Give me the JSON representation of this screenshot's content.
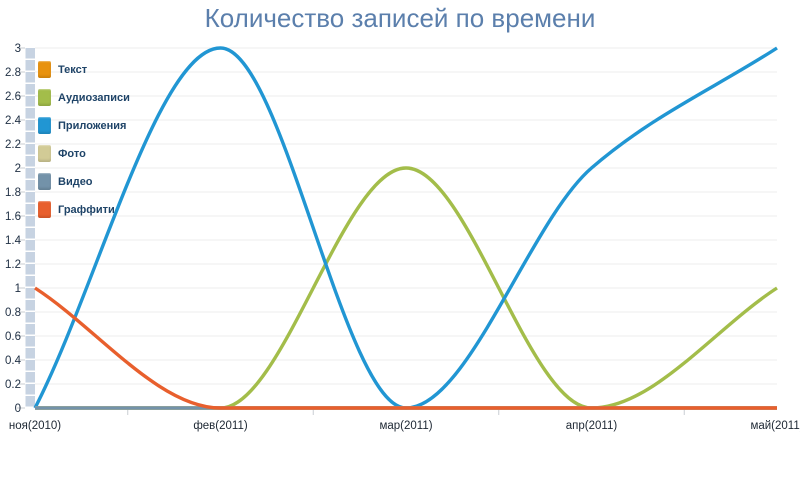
{
  "title": "Количество записей по времени",
  "colors": {
    "title": "#5b7fac",
    "axis_label": "#223246",
    "x_label": "#1d2733",
    "legend_text": "#1f4468",
    "gridline": "#ececec",
    "tick": "#c9cdd2",
    "axis_stripe": "#c7d3e2"
  },
  "chart_data": {
    "type": "line",
    "title": "Количество записей по времени",
    "categories": [
      "ноя(2010)",
      "фев(2011)",
      "мар(2011)",
      "апр(2011)",
      "май(2011)"
    ],
    "series": [
      {
        "name": "Текст",
        "color": "#e8920e",
        "values": [
          0,
          0,
          0,
          0,
          0
        ]
      },
      {
        "name": "Аудиозаписи",
        "color": "#a3bd4a",
        "values": [
          0,
          0,
          2,
          0,
          1
        ]
      },
      {
        "name": "Приложения",
        "color": "#2196d3",
        "values": [
          0,
          3,
          0,
          2,
          3
        ]
      },
      {
        "name": "Фото",
        "color": "#d2cb96",
        "values": [
          0,
          0,
          0,
          0,
          0
        ]
      },
      {
        "name": "Видео",
        "color": "#7392a9",
        "values": [
          0,
          0,
          0,
          0,
          0
        ]
      },
      {
        "name": "Граффити",
        "color": "#e85f2d",
        "values": [
          1,
          0,
          0,
          0,
          0
        ]
      }
    ],
    "xlabel": "",
    "ylabel": "",
    "ylim": [
      0,
      3
    ],
    "y_tick_step": 0.2,
    "y_tick_labels": [
      "0",
      "0.2",
      "0.4",
      "0.6",
      "0.8",
      "1",
      "1.2",
      "1.4",
      "1.6",
      "1.8",
      "2",
      "2.2",
      "2.4",
      "2.6",
      "2.8",
      "3"
    ],
    "grid": true,
    "legend_position": "top-left",
    "interpolation": "monotone-cubic"
  }
}
